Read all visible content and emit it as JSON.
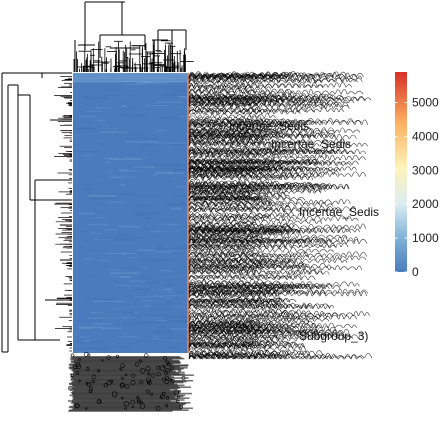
{
  "chart_data": {
    "type": "heatmap",
    "title": "",
    "xlabel": "",
    "ylabel": "",
    "colorbar": {
      "min": 0,
      "max": 5900,
      "ticks": [
        0,
        1000,
        2000,
        3000,
        4000,
        5000
      ],
      "colors": [
        "#4a7cbd",
        "#7fb2d6",
        "#dcecf2",
        "#fcf4b9",
        "#fcb061",
        "#d73027"
      ]
    },
    "cell_color_typical": "#4a7cbd",
    "row_dendrogram": true,
    "column_dendrogram": true,
    "row_labels_visible": [
      "Incertae_Sedis",
      "Incertae_Sedis",
      "Incertae_Sedis",
      "Subgroup_3)"
    ]
  }
}
